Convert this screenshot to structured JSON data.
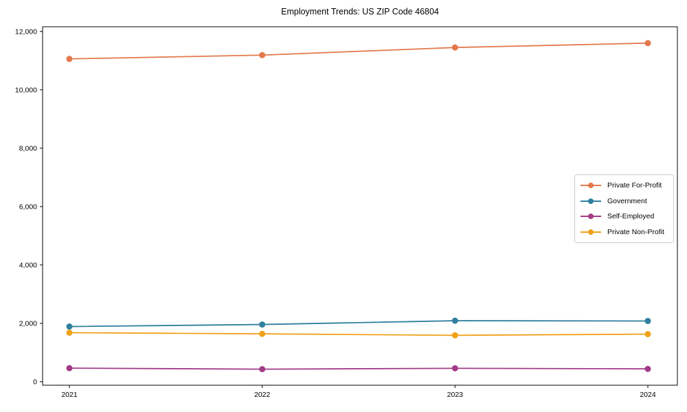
{
  "figure": {
    "background": "#ffffff",
    "axis_color": "#000000",
    "tick_label_color": "#000000",
    "legend_border_color": "#cccccc"
  },
  "chart_data": {
    "type": "line",
    "title": "Employment Trends: US ZIP Code 46804",
    "xlabel": "",
    "ylabel": "",
    "categories": [
      "2021",
      "2022",
      "2023",
      "2024"
    ],
    "series": [
      {
        "name": "Private For-Profit",
        "color": "#e2784b",
        "values": [
          11060,
          11190,
          11450,
          11600
        ]
      },
      {
        "name": "Government",
        "color": "#2f7f9e",
        "values": [
          1890,
          1960,
          2090,
          2080
        ]
      },
      {
        "name": "Self-Employed",
        "color": "#a23b87",
        "values": [
          465,
          430,
          460,
          440
        ]
      },
      {
        "name": "Private Non-Profit",
        "color": "#f0a11a",
        "values": [
          1680,
          1640,
          1590,
          1630
        ]
      }
    ],
    "yticks": [
      {
        "value": 0,
        "label": "0"
      },
      {
        "value": 2000,
        "label": "2,000"
      },
      {
        "value": 4000,
        "label": "4,000"
      },
      {
        "value": 6000,
        "label": "6,000"
      },
      {
        "value": 8000,
        "label": "8,000"
      },
      {
        "value": 10000,
        "label": "10,000"
      },
      {
        "value": 12000,
        "label": "12,000"
      }
    ],
    "ylim": [
      -120,
      12160
    ],
    "grid": false,
    "legend_position": "center-right",
    "marker": "circle",
    "line_width": 1.8,
    "marker_radius": 4.5
  }
}
